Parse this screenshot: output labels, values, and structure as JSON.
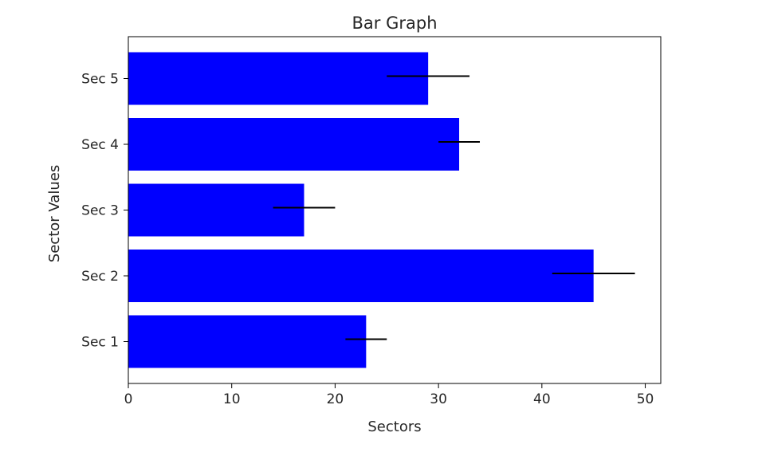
{
  "chart_data": {
    "type": "bar",
    "orientation": "horizontal",
    "title": "Bar Graph",
    "xlabel": "Sectors",
    "ylabel": "Sector Values",
    "categories": [
      "Sec 1",
      "Sec 2",
      "Sec 3",
      "Sec 4",
      "Sec 5"
    ],
    "values": [
      23,
      45,
      17,
      32,
      29
    ],
    "errors": [
      2,
      4,
      3,
      2,
      4
    ],
    "xlim": [
      0,
      51.5
    ],
    "xticks": [
      0,
      10,
      20,
      30,
      40,
      50
    ],
    "bar_color": "#0000ff",
    "error_color": "#000000",
    "grid": false,
    "legend": "none"
  }
}
